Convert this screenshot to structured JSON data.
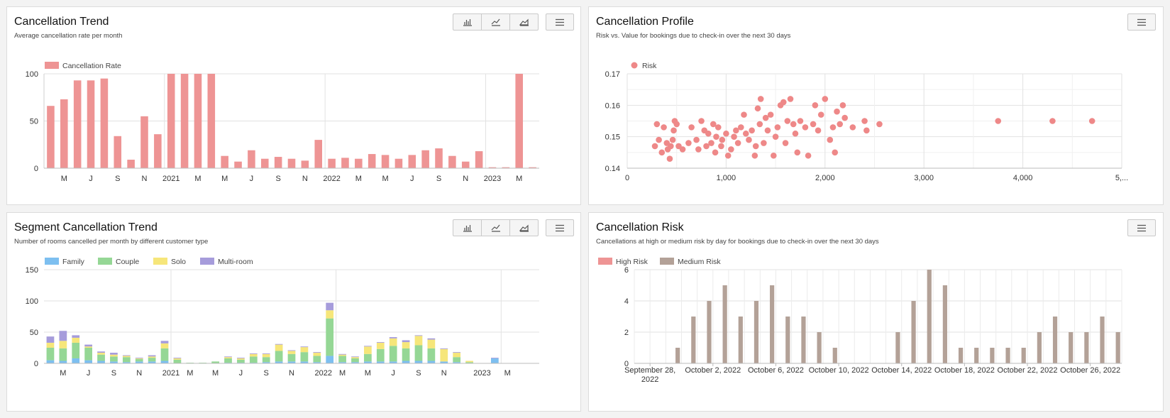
{
  "icons": {
    "bar": "bar-chart-icon",
    "line": "line-chart-icon",
    "area": "area-chart-icon",
    "menu": "hamburger-menu-icon"
  },
  "panels": [
    {
      "title": "Cancellation Trend",
      "subtitle": "Average cancellation rate per month"
    },
    {
      "title": "Cancellation Profile",
      "subtitle": "Risk vs. Value for bookings due to check-in over the next 30 days"
    },
    {
      "title": "Segment Cancellation Trend",
      "subtitle": "Number of rooms cancelled per month by different customer type"
    },
    {
      "title": "Cancellation Risk",
      "subtitle": "Cancellations at high or medium risk by day for bookings due to check-in over the next 30 days"
    }
  ],
  "chart_data": [
    {
      "type": "bar",
      "legend": [
        "Cancellation Rate"
      ],
      "colors": [
        "#ee9494"
      ],
      "ylim": [
        0,
        100
      ],
      "yticks": [
        0,
        50,
        100
      ],
      "xtick_labels": [
        "M",
        "J",
        "S",
        "N",
        "2021",
        "M",
        "M",
        "J",
        "S",
        "N",
        "2022",
        "M",
        "M",
        "J",
        "S",
        "N",
        "2023",
        "M"
      ],
      "values": [
        66,
        73,
        93,
        93,
        95,
        34,
        9,
        55,
        36,
        100,
        100,
        100,
        100,
        13,
        7,
        19,
        10,
        12,
        10,
        8,
        30,
        10,
        11,
        10,
        15,
        14,
        10,
        14,
        19,
        21,
        13,
        7,
        18,
        1,
        1,
        100,
        1
      ],
      "grid": true
    },
    {
      "type": "scatter",
      "legend": [
        "Risk"
      ],
      "colors": [
        "#ee8888"
      ],
      "xlim": [
        0,
        5000
      ],
      "ylim": [
        0.14,
        0.17
      ],
      "xtick_labels": [
        "0",
        "1,000",
        "2,000",
        "3,000",
        "4,000",
        "5,..."
      ],
      "ytick_labels": [
        "0.14",
        "0.15",
        "0.16",
        "0.17"
      ],
      "points": [
        [
          280,
          0.147
        ],
        [
          300,
          0.154
        ],
        [
          320,
          0.149
        ],
        [
          350,
          0.145
        ],
        [
          370,
          0.153
        ],
        [
          400,
          0.148
        ],
        [
          410,
          0.146
        ],
        [
          430,
          0.143
        ],
        [
          440,
          0.147
        ],
        [
          460,
          0.149
        ],
        [
          470,
          0.152
        ],
        [
          480,
          0.155
        ],
        [
          500,
          0.154
        ],
        [
          520,
          0.147
        ],
        [
          560,
          0.146
        ],
        [
          620,
          0.148
        ],
        [
          650,
          0.153
        ],
        [
          700,
          0.149
        ],
        [
          720,
          0.146
        ],
        [
          750,
          0.155
        ],
        [
          780,
          0.152
        ],
        [
          800,
          0.147
        ],
        [
          820,
          0.151
        ],
        [
          850,
          0.148
        ],
        [
          870,
          0.154
        ],
        [
          890,
          0.145
        ],
        [
          900,
          0.15
        ],
        [
          920,
          0.153
        ],
        [
          950,
          0.147
        ],
        [
          960,
          0.149
        ],
        [
          1000,
          0.151
        ],
        [
          1020,
          0.144
        ],
        [
          1050,
          0.146
        ],
        [
          1080,
          0.15
        ],
        [
          1100,
          0.152
        ],
        [
          1120,
          0.148
        ],
        [
          1150,
          0.153
        ],
        [
          1180,
          0.157
        ],
        [
          1200,
          0.151
        ],
        [
          1230,
          0.149
        ],
        [
          1260,
          0.152
        ],
        [
          1290,
          0.144
        ],
        [
          1300,
          0.147
        ],
        [
          1320,
          0.159
        ],
        [
          1340,
          0.154
        ],
        [
          1350,
          0.162
        ],
        [
          1380,
          0.148
        ],
        [
          1400,
          0.156
        ],
        [
          1420,
          0.152
        ],
        [
          1450,
          0.157
        ],
        [
          1480,
          0.144
        ],
        [
          1500,
          0.15
        ],
        [
          1520,
          0.153
        ],
        [
          1550,
          0.16
        ],
        [
          1580,
          0.161
        ],
        [
          1600,
          0.148
        ],
        [
          1620,
          0.155
        ],
        [
          1650,
          0.162
        ],
        [
          1680,
          0.154
        ],
        [
          1700,
          0.151
        ],
        [
          1720,
          0.145
        ],
        [
          1750,
          0.155
        ],
        [
          1800,
          0.153
        ],
        [
          1830,
          0.144
        ],
        [
          1880,
          0.154
        ],
        [
          1900,
          0.16
        ],
        [
          1930,
          0.152
        ],
        [
          1960,
          0.157
        ],
        [
          2000,
          0.162
        ],
        [
          2050,
          0.149
        ],
        [
          2080,
          0.153
        ],
        [
          2100,
          0.145
        ],
        [
          2120,
          0.158
        ],
        [
          2150,
          0.154
        ],
        [
          2180,
          0.16
        ],
        [
          2200,
          0.156
        ],
        [
          2280,
          0.153
        ],
        [
          2400,
          0.155
        ],
        [
          2420,
          0.152
        ],
        [
          2550,
          0.154
        ],
        [
          3750,
          0.155
        ],
        [
          4300,
          0.155
        ],
        [
          4700,
          0.155
        ]
      ],
      "grid": true
    },
    {
      "type": "bar",
      "stacked": true,
      "legend": [
        "Family",
        "Couple",
        "Solo",
        "Multi-room"
      ],
      "colors": [
        "#7dbff0",
        "#95d795",
        "#f6e67a",
        "#a69cdb"
      ],
      "ylim": [
        0,
        150
      ],
      "yticks": [
        0,
        50,
        100,
        150
      ],
      "xtick_labels": [
        "M",
        "J",
        "S",
        "N",
        "2021",
        "M",
        "M",
        "J",
        "S",
        "N",
        "2022",
        "M",
        "M",
        "J",
        "S",
        "N",
        "2023",
        "M"
      ],
      "series": [
        {
          "name": "Family",
          "values": [
            5,
            4,
            8,
            5,
            4,
            3,
            2,
            3,
            3,
            4,
            0,
            0,
            0,
            0,
            1,
            1,
            1,
            2,
            3,
            3,
            3,
            2,
            12,
            2,
            2,
            3,
            3,
            3,
            4,
            4,
            4,
            3,
            2,
            0,
            0,
            8,
            0,
            0,
            0
          ]
        },
        {
          "name": "Couple",
          "values": [
            20,
            20,
            25,
            20,
            10,
            8,
            8,
            4,
            6,
            20,
            6,
            1,
            1,
            3,
            7,
            5,
            10,
            8,
            17,
            12,
            15,
            10,
            60,
            10,
            6,
            12,
            20,
            25,
            20,
            25,
            20,
            0,
            8,
            2,
            0,
            0,
            0,
            0,
            0
          ]
        },
        {
          "name": "Solo",
          "values": [
            8,
            12,
            8,
            2,
            3,
            3,
            2,
            1,
            2,
            8,
            2,
            0,
            0,
            0,
            2,
            2,
            4,
            5,
            10,
            5,
            8,
            5,
            13,
            2,
            2,
            12,
            10,
            12,
            10,
            15,
            14,
            20,
            7,
            2,
            0,
            0,
            0,
            0,
            0
          ]
        },
        {
          "name": "Multi-room",
          "values": [
            10,
            16,
            4,
            3,
            2,
            3,
            1,
            1,
            2,
            4,
            1,
            0,
            0,
            0,
            1,
            1,
            1,
            1,
            1,
            1,
            1,
            1,
            12,
            1,
            1,
            1,
            1,
            2,
            3,
            1,
            2,
            1,
            1,
            0,
            0,
            1,
            0,
            0,
            0
          ]
        }
      ],
      "grid": true
    },
    {
      "type": "bar",
      "legend": [
        "High Risk",
        "Medium Risk"
      ],
      "colors": [
        "#ee9494",
        "#b3a197"
      ],
      "ylim": [
        0,
        6
      ],
      "yticks": [
        0,
        2,
        4,
        6
      ],
      "xtick_labels": [
        "September 28, 2022",
        "October 2, 2022",
        "October 6, 2022",
        "October 10, 2022",
        "October 14, 2022",
        "October 18, 2022",
        "October 22, 2022",
        "October 26, 2022"
      ],
      "categories": [
        "Sep 27",
        "Sep 28",
        "Sep 29",
        "Sep 30",
        "Oct 1",
        "Oct 2",
        "Oct 3",
        "Oct 4",
        "Oct 5",
        "Oct 6",
        "Oct 7",
        "Oct 8",
        "Oct 9",
        "Oct 10",
        "Oct 11",
        "Oct 12",
        "Oct 13",
        "Oct 14",
        "Oct 15",
        "Oct 16",
        "Oct 17",
        "Oct 18",
        "Oct 19",
        "Oct 20",
        "Oct 21",
        "Oct 22",
        "Oct 23",
        "Oct 24",
        "Oct 25",
        "Oct 26",
        "Oct 27"
      ],
      "series": [
        {
          "name": "High Risk",
          "values": [
            0,
            0,
            0,
            0,
            0,
            0,
            0,
            0,
            0,
            0,
            0,
            0,
            0,
            0,
            0,
            0,
            0,
            0,
            0,
            0,
            0,
            0,
            0,
            0,
            0,
            0,
            0,
            0,
            0,
            0,
            0
          ]
        },
        {
          "name": "Medium Risk",
          "values": [
            0,
            0,
            1,
            3,
            4,
            5,
            3,
            4,
            5,
            3,
            3,
            2,
            1,
            0,
            0,
            0,
            2,
            4,
            6,
            5,
            1,
            1,
            1,
            1,
            1,
            2,
            3,
            2,
            2,
            3,
            2
          ]
        }
      ],
      "grid": true
    }
  ]
}
